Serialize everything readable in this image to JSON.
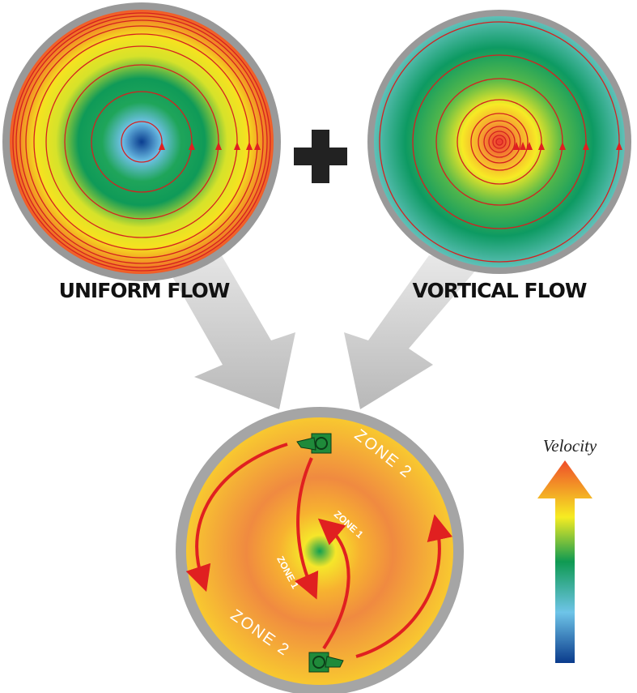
{
  "labels": {
    "uniform": "UNIFORM FLOW",
    "vortical": "VORTICAL FLOW"
  },
  "zones": [
    "ZONE 2",
    "ZONE 2",
    "ZONE 1",
    "ZONE 1"
  ],
  "legend": {
    "title": "Velocity"
  }
}
